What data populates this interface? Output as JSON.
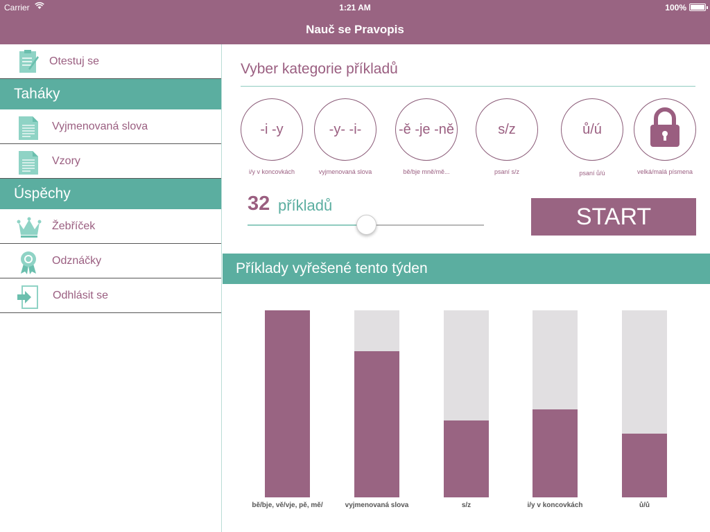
{
  "status": {
    "carrier": "Carrier",
    "time": "1:21 AM",
    "battery": "100%"
  },
  "nav": {
    "title": "Nauč se Pravopis"
  },
  "sidebar": {
    "top_item": {
      "label": "Otestuj se",
      "icon": "clipboard-icon"
    },
    "sections": [
      {
        "header": "Taháky",
        "items": [
          {
            "label": "Vyjmenovaná slova",
            "icon": "document-icon"
          },
          {
            "label": "Vzory",
            "icon": "document-icon"
          }
        ]
      },
      {
        "header": "Úspěchy",
        "items": [
          {
            "label": "Žebříček",
            "icon": "crown-icon"
          },
          {
            "label": "Odznáčky",
            "icon": "badge-icon"
          },
          {
            "label": "Odhlásit se",
            "icon": "logout-icon"
          }
        ]
      }
    ]
  },
  "main": {
    "title": "Vyber kategorie příkladů",
    "categories": [
      {
        "symbol": "-i -y",
        "label": "i/y v koncovkách"
      },
      {
        "symbol": "-y- -i-",
        "label": "vyjmenovaná slova"
      },
      {
        "symbol": "-ě -je -ně",
        "label": "bě/bje mně/mě..."
      },
      {
        "symbol": "s/z",
        "label": "psaní s/z"
      },
      {
        "symbol": "ů/ú",
        "label": "psaní ů/ú"
      },
      {
        "symbol": "",
        "label": "velká/malá písmena",
        "icon": "lock-icon"
      }
    ],
    "count": {
      "value": "32",
      "unit": "příkladů",
      "slider_fraction": 0.5
    },
    "start_label": "START"
  },
  "week": {
    "title": "Příklady vyřešené tento týden",
    "chart_data": {
      "type": "bar",
      "categories": [
        "bě/bje, vě/vje, pě, mě/",
        "vyjmenovaná slova",
        "s/z",
        "i/y v koncovkách",
        "ů/ů"
      ],
      "values": [
        1.0,
        0.78,
        0.41,
        0.47,
        0.34
      ],
      "ylim": [
        0,
        1
      ],
      "colors": {
        "filled": "#996482",
        "empty": "#e1dfe1"
      }
    }
  },
  "colors": {
    "accent": "#996482",
    "teal": "#5baea0"
  }
}
